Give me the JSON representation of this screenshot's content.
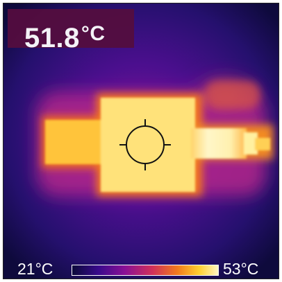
{
  "spot_temperature": {
    "value": "51.8",
    "unit": "°C"
  },
  "color_scale": {
    "min_label": "21°C",
    "max_label": "53°C",
    "palette": [
      "#0b0a3a",
      "#3a0a8c",
      "#8a1096",
      "#d1305a",
      "#f07a1c",
      "#ffcf30",
      "#fff6c0"
    ]
  },
  "colors": {
    "background_cold": "#1a0a52",
    "mid": "#8a1096",
    "hot": "#fff0a0",
    "overlay_box": "#540d3f"
  },
  "icons": {
    "crosshair": "crosshair-icon"
  }
}
